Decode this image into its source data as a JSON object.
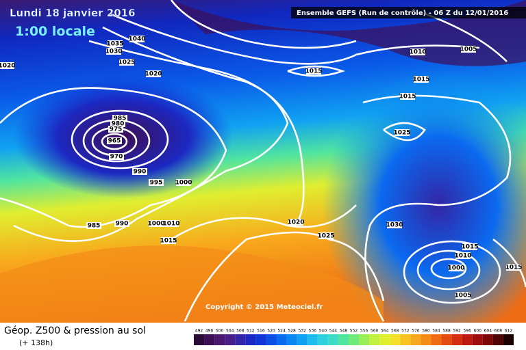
{
  "header": {
    "date": "Lundi 18 janvier 2016",
    "time": "1:00 locale",
    "model": "Ensemble GEFS  (Run de contrôle)  -  06 Z du 12/01/2016",
    "copyright": "Copyright © 2015 Meteociel.fr"
  },
  "footer": {
    "title": "Géop. Z500 & pression au sol",
    "lead": "(+ 138h)"
  },
  "isobar_labels": [
    "1040",
    "1035",
    "1030",
    "1025",
    "1020",
    "1020",
    "1015",
    "1010",
    "1005",
    "1015",
    "1015",
    "985",
    "980",
    "975",
    "965",
    "970",
    "990",
    "995",
    "1000",
    "1025",
    "985",
    "990",
    "1000",
    "1010",
    "1015",
    "1020",
    "1025",
    "1030",
    "1015",
    "1010",
    "1000",
    "1005",
    "1015"
  ],
  "legend": {
    "values": [
      492,
      496,
      500,
      504,
      508,
      512,
      516,
      520,
      524,
      528,
      532,
      536,
      540,
      544,
      548,
      552,
      556,
      560,
      564,
      568,
      572,
      576,
      580,
      584,
      588,
      592,
      596,
      600,
      604,
      608,
      612
    ],
    "colors": [
      "#2b0a3a",
      "#3c0f55",
      "#4b1870",
      "#4a1f8c",
      "#3226a6",
      "#1c28c2",
      "#1036d8",
      "#0a50e6",
      "#0a6af0",
      "#0a86f2",
      "#10a2f2",
      "#1ebcee",
      "#2ed0e0",
      "#3edcc4",
      "#50e4a0",
      "#70ea7a",
      "#98ee58",
      "#c0f040",
      "#e0ee30",
      "#f4e028",
      "#f8c420",
      "#f8a81c",
      "#f48c18",
      "#ee6c14",
      "#e44c12",
      "#d42e10",
      "#bc1a10",
      "#9c0e0e",
      "#7a0808",
      "#500404",
      "#1a0000"
    ]
  }
}
